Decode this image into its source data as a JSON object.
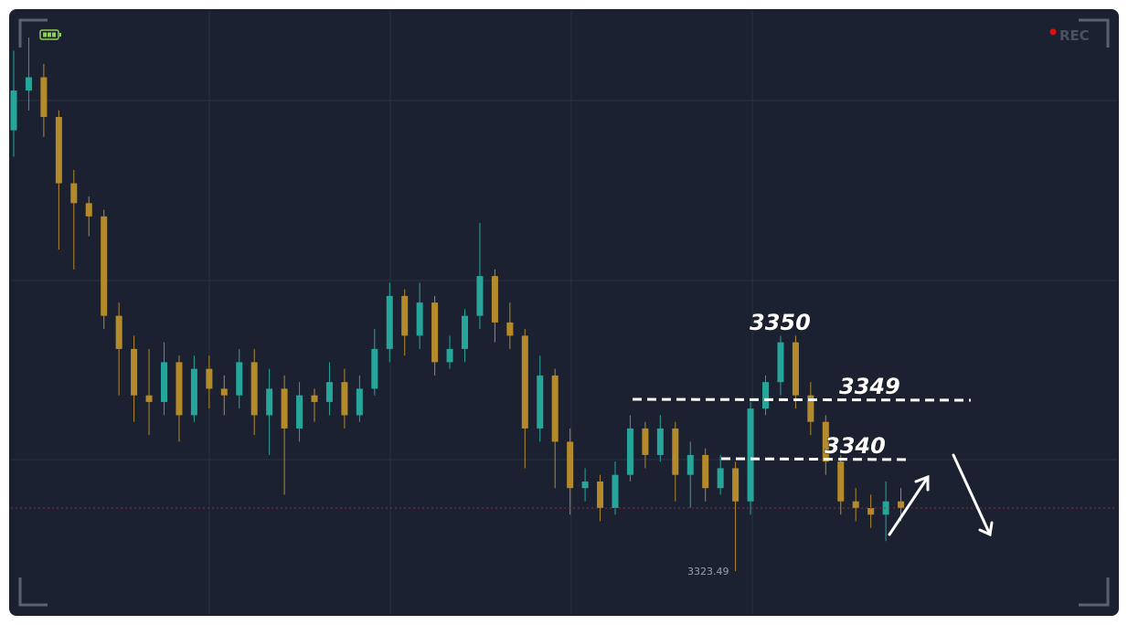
{
  "chart_data": {
    "type": "candlestick",
    "recording_label": "REC",
    "annotations": [
      "3350",
      "3349",
      "3340"
    ],
    "low_label": "3323.49",
    "up_color": "#26a69a",
    "down_color": "#b58a2a",
    "ylim": [
      3317,
      3408
    ],
    "candles": [
      [
        3390,
        3402,
        3386,
        3396
      ],
      [
        3396,
        3404,
        3393,
        3398
      ],
      [
        3398,
        3400,
        3389,
        3392
      ],
      [
        3392,
        3393,
        3372,
        3382
      ],
      [
        3382,
        3384,
        3369,
        3379
      ],
      [
        3379,
        3380,
        3374,
        3377
      ],
      [
        3377,
        3378,
        3360,
        3362
      ],
      [
        3362,
        3364,
        3350,
        3357
      ],
      [
        3357,
        3359,
        3346,
        3350
      ],
      [
        3350,
        3357,
        3344,
        3349
      ],
      [
        3349,
        3358,
        3347,
        3355
      ],
      [
        3355,
        3356,
        3343,
        3347
      ],
      [
        3347,
        3356,
        3346,
        3354
      ],
      [
        3354,
        3356,
        3348,
        3351
      ],
      [
        3351,
        3353,
        3347,
        3350
      ],
      [
        3350,
        3357,
        3348,
        3355
      ],
      [
        3355,
        3357,
        3344,
        3347
      ],
      [
        3347,
        3354,
        3341,
        3351
      ],
      [
        3351,
        3353,
        3335,
        3345
      ],
      [
        3345,
        3352,
        3343,
        3350
      ],
      [
        3350,
        3351,
        3346,
        3349
      ],
      [
        3349,
        3355,
        3347,
        3352
      ],
      [
        3352,
        3354,
        3345,
        3347
      ],
      [
        3347,
        3353,
        3346,
        3351
      ],
      [
        3351,
        3360,
        3350,
        3357
      ],
      [
        3357,
        3367,
        3355,
        3365
      ],
      [
        3365,
        3366,
        3356,
        3359
      ],
      [
        3359,
        3367,
        3357,
        3364
      ],
      [
        3364,
        3365,
        3353,
        3355
      ],
      [
        3355,
        3359,
        3354,
        3357
      ],
      [
        3357,
        3363,
        3355,
        3362
      ],
      [
        3362,
        3376,
        3360,
        3368
      ],
      [
        3368,
        3369,
        3358,
        3361
      ],
      [
        3361,
        3364,
        3357,
        3359
      ],
      [
        3359,
        3360,
        3339,
        3345
      ],
      [
        3345,
        3356,
        3343,
        3353
      ],
      [
        3353,
        3354,
        3336,
        3343
      ],
      [
        3343,
        3345,
        3332,
        3336
      ],
      [
        3336,
        3339,
        3334,
        3337
      ],
      [
        3337,
        3338,
        3331,
        3333
      ],
      [
        3333,
        3340,
        3332,
        3338
      ],
      [
        3338,
        3347,
        3337,
        3345
      ],
      [
        3345,
        3346,
        3339,
        3341
      ],
      [
        3341,
        3347,
        3340,
        3345
      ],
      [
        3345,
        3346,
        3334,
        3338
      ],
      [
        3338,
        3343,
        3333,
        3341
      ],
      [
        3341,
        3342,
        3334,
        3336
      ],
      [
        3336,
        3341,
        3335,
        3339
      ],
      [
        3339,
        3340,
        3323.49,
        3334
      ],
      [
        3334,
        3349,
        3332,
        3348
      ],
      [
        3348,
        3353,
        3347,
        3352
      ],
      [
        3352,
        3359,
        3350,
        3358
      ],
      [
        3358,
        3359,
        3348,
        3350
      ],
      [
        3350,
        3352,
        3344,
        3346
      ],
      [
        3346,
        3347,
        3338,
        3340
      ],
      [
        3340,
        3341,
        3332,
        3334
      ],
      [
        3334,
        3336,
        3331,
        3333
      ],
      [
        3333,
        3335,
        3330,
        3332
      ],
      [
        3332,
        3337,
        3328,
        3334
      ],
      [
        3334,
        3336,
        3331,
        3333
      ]
    ]
  }
}
